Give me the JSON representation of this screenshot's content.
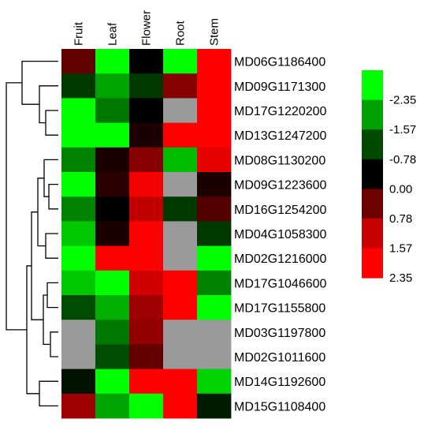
{
  "chart_data": {
    "type": "heatmap",
    "columns": [
      "Fruit",
      "Leaf",
      "Flower",
      "Root",
      "Stem"
    ],
    "rows": [
      "MD06G1186400",
      "MD09G1171300",
      "MD17G1220200",
      "MD13G1247200",
      "MD08G1130200",
      "MD09G1223600",
      "MD16G1254200",
      "MD04G1058300",
      "MD02G1216000",
      "MD17G1046600",
      "MD17G1155800",
      "MD03G1197800",
      "MD02G1011600",
      "MD14G1192600",
      "MD15G1108400"
    ],
    "values": [
      [
        0.7,
        -2.35,
        0.0,
        -2.35,
        2.35
      ],
      [
        -0.6,
        -1.6,
        -0.6,
        1.0,
        2.35
      ],
      [
        -2.35,
        -1.2,
        0.0,
        null,
        2.35
      ],
      [
        -2.35,
        -2.35,
        0.2,
        2.35,
        2.35
      ],
      [
        -1.3,
        0.2,
        1.0,
        -1.8,
        2.0
      ],
      [
        -2.35,
        0.3,
        2.2,
        null,
        0.2
      ],
      [
        -1.3,
        0.0,
        1.5,
        -0.6,
        0.6
      ],
      [
        -1.9,
        0.2,
        2.35,
        null,
        -0.6
      ],
      [
        -2.35,
        2.35,
        2.35,
        null,
        -2.35
      ],
      [
        -1.9,
        -2.35,
        1.7,
        2.35,
        -1.3
      ],
      [
        -0.8,
        -1.7,
        1.2,
        2.35,
        -2.35
      ],
      [
        null,
        -1.2,
        1.1,
        null,
        null
      ],
      [
        null,
        -0.8,
        0.7,
        null,
        null
      ],
      [
        -0.2,
        -2.35,
        2.35,
        2.35,
        -2.0
      ],
      [
        1.2,
        -1.6,
        -2.35,
        2.35,
        -0.3
      ]
    ],
    "missing_color": "#9a9a9a",
    "colorscale": {
      "min": -3.13,
      "max": 3.13,
      "stops": [
        {
          "v": -3.13,
          "color": "#00ff00"
        },
        {
          "v": -2.35,
          "color": "#00ff00"
        },
        {
          "v": -1.57,
          "color": "#00a000"
        },
        {
          "v": -0.78,
          "color": "#004a00"
        },
        {
          "v": 0.0,
          "color": "#000000"
        },
        {
          "v": 0.78,
          "color": "#6e0000"
        },
        {
          "v": 1.57,
          "color": "#c80000"
        },
        {
          "v": 2.35,
          "color": "#ff0000"
        },
        {
          "v": 3.13,
          "color": "#ff0000"
        }
      ]
    },
    "legend": {
      "position": "right",
      "swatches": [
        "#00ff00",
        "#00a000",
        "#004a00",
        "#000000",
        "#6e0000",
        "#c80000",
        "#ff0000"
      ],
      "labels": [
        "-2.35",
        "-1.57",
        "-0.78",
        "0.00",
        "0.78",
        "1.57",
        "2.35"
      ]
    },
    "dendrogram": "left, hierarchical clustering of rows"
  }
}
